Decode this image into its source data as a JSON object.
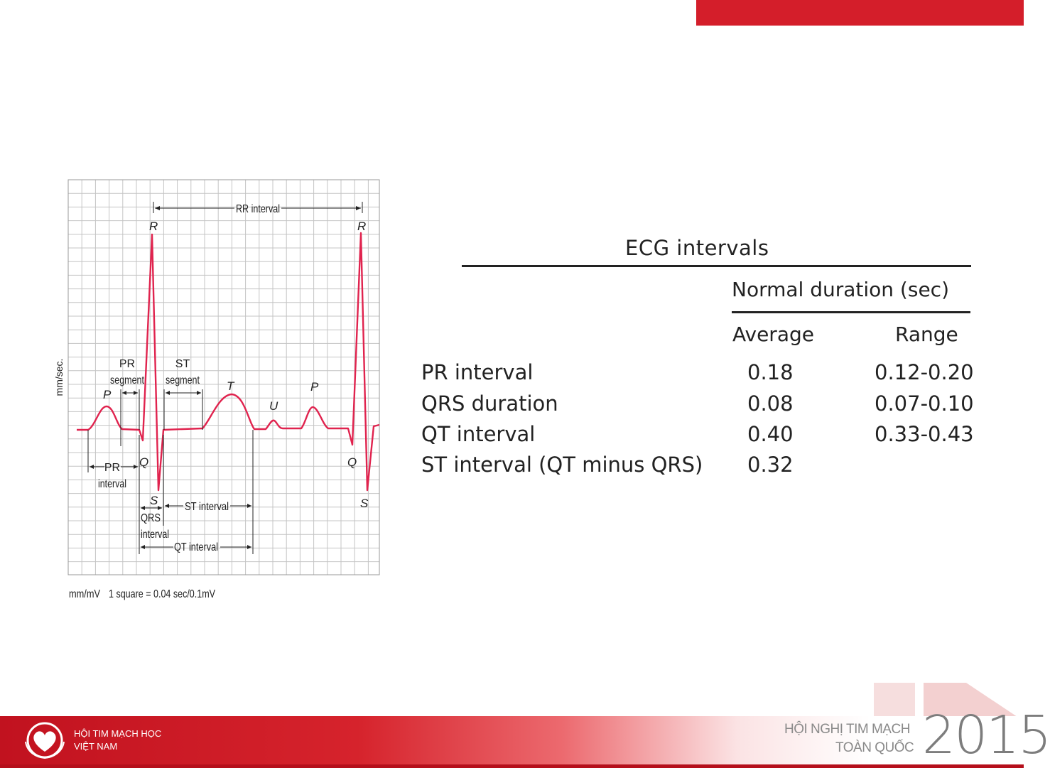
{
  "diagram": {
    "y_axis_label": "mm/sec.",
    "scale_note_unit": "mm/mV",
    "scale_note": "1 square = 0.04 sec/0.1mV",
    "waves": {
      "r1": "R",
      "r2": "R",
      "p1": "P",
      "p2": "P",
      "q1": "Q",
      "q2": "Q",
      "s1": "S",
      "s2": "S",
      "t": "T",
      "u": "U"
    },
    "labels": {
      "rr_interval": "RR interval",
      "pr_segment_1": "PR",
      "pr_segment_2": "segment",
      "st_segment_1": "ST",
      "st_segment_2": "segment",
      "pr_interval_1": "PR",
      "pr_interval_2": "interval",
      "qrs_interval_1": "QRS",
      "qrs_interval_2": "interval",
      "st_interval": "ST interval",
      "qt_interval": "QT interval"
    }
  },
  "table": {
    "title": "ECG intervals",
    "subheader": "Normal duration (sec)",
    "col_average": "Average",
    "col_range": "Range",
    "rows": [
      {
        "label": "PR interval",
        "average": "0.18",
        "range": "0.12-0.20"
      },
      {
        "label": "QRS duration",
        "average": "0.08",
        "range": "0.07-0.10"
      },
      {
        "label": "QT interval",
        "average": "0.40",
        "range": "0.33-0.43"
      },
      {
        "label": "ST interval (QT minus QRS)",
        "average": "0.32",
        "range": ""
      }
    ]
  },
  "footer": {
    "org_line1": "HỘI TIM MẠCH HỌC",
    "org_line2": "VIỆT NAM",
    "conf_line1": "HỘI NGHỊ TIM MẠCH",
    "conf_line2": "TOÀN QUỐC",
    "conf_year": "2015"
  },
  "colors": {
    "accent_red": "#d41e2a",
    "ecg_trace": "#e0234e",
    "grid": "#bdbdbd"
  }
}
